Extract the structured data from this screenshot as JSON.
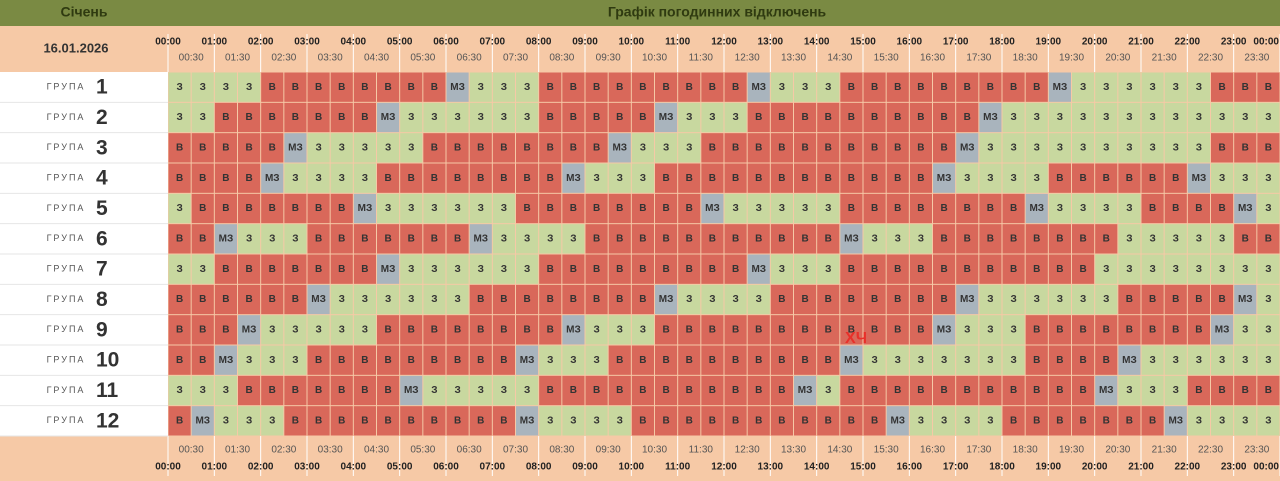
{
  "header": {
    "month": "Січень",
    "title": "Графік погодинних відключень",
    "date": "16.01.2026"
  },
  "hours": [
    "00:00",
    "01:00",
    "02:00",
    "03:00",
    "04:00",
    "05:00",
    "06:00",
    "07:00",
    "08:00",
    "09:00",
    "10:00",
    "11:00",
    "12:00",
    "13:00",
    "14:00",
    "15:00",
    "16:00",
    "17:00",
    "18:00",
    "19:00",
    "20:00",
    "21:00",
    "22:00",
    "23:00",
    "00:00"
  ],
  "half_hours": [
    "00:30",
    "01:30",
    "02:30",
    "03:30",
    "04:30",
    "05:30",
    "06:30",
    "07:30",
    "08:30",
    "09:30",
    "10:30",
    "11:30",
    "12:30",
    "13:30",
    "14:30",
    "15:30",
    "16:30",
    "17:30",
    "18:30",
    "19:30",
    "20:30",
    "21:30",
    "22:30",
    "23:30"
  ],
  "annotation": "ХЧ",
  "groups": [
    {
      "label": "ГРУПА",
      "number": 1,
      "cells": [
        "З",
        "З",
        "З",
        "З",
        "В",
        "В",
        "В",
        "В",
        "В",
        "В",
        "В",
        "В",
        "МЗ",
        "З",
        "З",
        "З",
        "В",
        "В",
        "В",
        "В",
        "В",
        "В",
        "В",
        "В",
        "В",
        "МЗ",
        "З",
        "З",
        "З",
        "В",
        "В",
        "В",
        "В",
        "В",
        "В",
        "В",
        "В",
        "В",
        "МЗ",
        "З",
        "З",
        "З",
        "З",
        "З",
        "З",
        "В",
        "В",
        "В"
      ]
    },
    {
      "label": "ГРУПА",
      "number": 2,
      "cells": [
        "З",
        "З",
        "В",
        "В",
        "В",
        "В",
        "В",
        "В",
        "В",
        "МЗ",
        "З",
        "З",
        "З",
        "З",
        "З",
        "З",
        "В",
        "В",
        "В",
        "В",
        "В",
        "МЗ",
        "З",
        "З",
        "З",
        "В",
        "В",
        "В",
        "В",
        "В",
        "В",
        "В",
        "В",
        "В",
        "В",
        "МЗ",
        "З",
        "З",
        "З",
        "З",
        "З",
        "З",
        "З",
        "З",
        "З",
        "З",
        "З",
        "З"
      ]
    },
    {
      "label": "ГРУПА",
      "number": 3,
      "cells": [
        "В",
        "В",
        "В",
        "В",
        "В",
        "МЗ",
        "З",
        "З",
        "З",
        "З",
        "З",
        "В",
        "В",
        "В",
        "В",
        "В",
        "В",
        "В",
        "В",
        "МЗ",
        "З",
        "З",
        "З",
        "В",
        "В",
        "В",
        "В",
        "В",
        "В",
        "В",
        "В",
        "В",
        "В",
        "В",
        "МЗ",
        "З",
        "З",
        "З",
        "З",
        "З",
        "З",
        "З",
        "З",
        "З",
        "З",
        "В",
        "В",
        "В"
      ]
    },
    {
      "label": "ГРУПА",
      "number": 4,
      "cells": [
        "В",
        "В",
        "В",
        "В",
        "МЗ",
        "З",
        "З",
        "З",
        "З",
        "В",
        "В",
        "В",
        "В",
        "В",
        "В",
        "В",
        "В",
        "МЗ",
        "З",
        "З",
        "З",
        "В",
        "В",
        "В",
        "В",
        "В",
        "В",
        "В",
        "В",
        "В",
        "В",
        "В",
        "В",
        "МЗ",
        "З",
        "З",
        "З",
        "З",
        "В",
        "В",
        "В",
        "В",
        "В",
        "В",
        "МЗ",
        "З",
        "З",
        "З"
      ]
    },
    {
      "label": "ГРУПА",
      "number": 5,
      "cells": [
        "З",
        "В",
        "В",
        "В",
        "В",
        "В",
        "В",
        "В",
        "МЗ",
        "З",
        "З",
        "З",
        "З",
        "З",
        "З",
        "В",
        "В",
        "В",
        "В",
        "В",
        "В",
        "В",
        "В",
        "МЗ",
        "З",
        "З",
        "З",
        "З",
        "З",
        "В",
        "В",
        "В",
        "В",
        "В",
        "В",
        "В",
        "В",
        "МЗ",
        "З",
        "З",
        "З",
        "З",
        "В",
        "В",
        "В",
        "В",
        "МЗ",
        "З"
      ]
    },
    {
      "label": "ГРУПА",
      "number": 6,
      "cells": [
        "В",
        "В",
        "МЗ",
        "З",
        "З",
        "З",
        "В",
        "В",
        "В",
        "В",
        "В",
        "В",
        "В",
        "МЗ",
        "З",
        "З",
        "З",
        "З",
        "В",
        "В",
        "В",
        "В",
        "В",
        "В",
        "В",
        "В",
        "В",
        "В",
        "В",
        "МЗ",
        "З",
        "З",
        "З",
        "В",
        "В",
        "В",
        "В",
        "В",
        "В",
        "В",
        "В",
        "З",
        "З",
        "З",
        "З",
        "З",
        "В",
        "В"
      ]
    },
    {
      "label": "ГРУПА",
      "number": 7,
      "cells": [
        "З",
        "З",
        "В",
        "В",
        "В",
        "В",
        "В",
        "В",
        "В",
        "МЗ",
        "З",
        "З",
        "З",
        "З",
        "З",
        "З",
        "В",
        "В",
        "В",
        "В",
        "В",
        "В",
        "В",
        "В",
        "В",
        "МЗ",
        "З",
        "З",
        "З",
        "В",
        "В",
        "В",
        "В",
        "В",
        "В",
        "В",
        "В",
        "В",
        "В",
        "В",
        "З",
        "З",
        "З",
        "З",
        "З",
        "З",
        "З",
        "З"
      ]
    },
    {
      "label": "ГРУПА",
      "number": 8,
      "cells": [
        "В",
        "В",
        "В",
        "В",
        "В",
        "В",
        "МЗ",
        "З",
        "З",
        "З",
        "З",
        "З",
        "З",
        "В",
        "В",
        "В",
        "В",
        "В",
        "В",
        "В",
        "В",
        "МЗ",
        "З",
        "З",
        "З",
        "З",
        "В",
        "В",
        "В",
        "В",
        "В",
        "В",
        "В",
        "В",
        "МЗ",
        "З",
        "З",
        "З",
        "З",
        "З",
        "З",
        "В",
        "В",
        "В",
        "В",
        "В",
        "МЗ",
        "З"
      ]
    },
    {
      "label": "ГРУПА",
      "number": 9,
      "cells": [
        "В",
        "В",
        "В",
        "МЗ",
        "З",
        "З",
        "З",
        "З",
        "З",
        "В",
        "В",
        "В",
        "В",
        "В",
        "В",
        "В",
        "В",
        "МЗ",
        "З",
        "З",
        "З",
        "В",
        "В",
        "В",
        "В",
        "В",
        "В",
        "В",
        "В",
        "В",
        "В",
        "В",
        "В",
        "МЗ",
        "З",
        "З",
        "З",
        "В",
        "В",
        "В",
        "В",
        "В",
        "В",
        "В",
        "В",
        "МЗ",
        "З",
        "З"
      ]
    },
    {
      "label": "ГРУПА",
      "number": 10,
      "cells": [
        "В",
        "В",
        "МЗ",
        "З",
        "З",
        "З",
        "В",
        "В",
        "В",
        "В",
        "В",
        "В",
        "В",
        "В",
        "В",
        "МЗ",
        "З",
        "З",
        "З",
        "В",
        "В",
        "В",
        "В",
        "В",
        "В",
        "В",
        "В",
        "В",
        "В",
        "МЗ",
        "З",
        "З",
        "З",
        "З",
        "З",
        "З",
        "З",
        "В",
        "В",
        "В",
        "В",
        "МЗ",
        "З",
        "З",
        "З",
        "З",
        "З",
        "З"
      ]
    },
    {
      "label": "ГРУПА",
      "number": 11,
      "cells": [
        "З",
        "З",
        "З",
        "В",
        "В",
        "В",
        "В",
        "В",
        "В",
        "В",
        "МЗ",
        "З",
        "З",
        "З",
        "З",
        "З",
        "В",
        "В",
        "В",
        "В",
        "В",
        "В",
        "В",
        "В",
        "В",
        "В",
        "В",
        "МЗ",
        "З",
        "В",
        "В",
        "В",
        "В",
        "В",
        "В",
        "В",
        "В",
        "В",
        "В",
        "В",
        "МЗ",
        "З",
        "З",
        "З",
        "В",
        "В",
        "В",
        "В"
      ]
    },
    {
      "label": "ГРУПА",
      "number": 12,
      "cells": [
        "В",
        "МЗ",
        "З",
        "З",
        "З",
        "В",
        "В",
        "В",
        "В",
        "В",
        "В",
        "В",
        "В",
        "В",
        "В",
        "МЗ",
        "З",
        "З",
        "З",
        "З",
        "В",
        "В",
        "В",
        "В",
        "В",
        "В",
        "В",
        "В",
        "В",
        "В",
        "В",
        "МЗ",
        "З",
        "З",
        "З",
        "З",
        "В",
        "В",
        "В",
        "В",
        "В",
        "В",
        "В",
        "МЗ",
        "З",
        "З",
        "З",
        "З"
      ]
    }
  ]
}
